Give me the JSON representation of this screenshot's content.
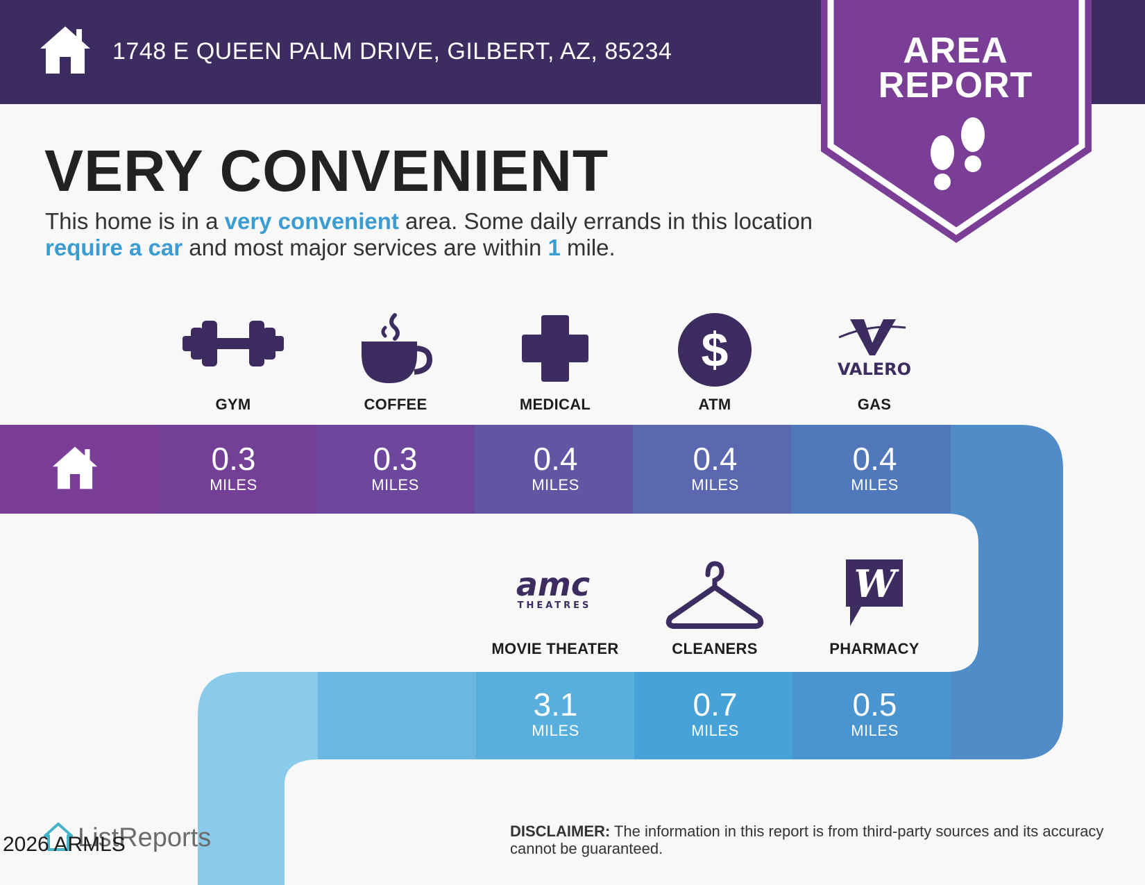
{
  "header": {
    "address": "1748 E QUEEN PALM DRIVE, GILBERT, AZ, 85234",
    "badge_line1": "AREA",
    "badge_line2": "REPORT",
    "color": "#3d2c5f",
    "badge_color": "#7a3e97",
    "icon": "house-icon"
  },
  "headline": "VERY CONVENIENT",
  "intro": {
    "p1": "This home is in a ",
    "h1": "very convenient",
    "p2": " area. Some daily errands in this location ",
    "h2": "require a car",
    "p3": " and most major services are within ",
    "h3": "1",
    "p4": " mile."
  },
  "amenities_row1": [
    {
      "label": "GYM",
      "value": "0.3",
      "unit": "MILES",
      "icon": "dumbbell-icon"
    },
    {
      "label": "COFFEE",
      "value": "0.3",
      "unit": "MILES",
      "icon": "coffee-cup-icon"
    },
    {
      "label": "MEDICAL",
      "value": "0.4",
      "unit": "MILES",
      "icon": "medical-cross-icon"
    },
    {
      "label": "ATM",
      "value": "0.4",
      "unit": "MILES",
      "icon": "dollar-icon"
    },
    {
      "label": "GAS",
      "value": "0.4",
      "unit": "MILES",
      "icon": "valero-logo",
      "logo_text": "VALERO"
    }
  ],
  "amenities_row2": [
    {
      "label": "MOVIE THEATER",
      "value": "3.1",
      "unit": "MILES",
      "icon": "amc-logo",
      "logo_text": "amc",
      "logo_sub": "THEATRES"
    },
    {
      "label": "CLEANERS",
      "value": "0.7",
      "unit": "MILES",
      "icon": "hanger-icon"
    },
    {
      "label": "PHARMACY",
      "value": "0.5",
      "unit": "MILES",
      "icon": "walgreens-logo",
      "logo_text": "W"
    }
  ],
  "disclaimer": {
    "bold": "DISCLAIMER:",
    "text": " The information in this report is from third-party sources and its accuracy cannot be guaranteed."
  },
  "footer": {
    "brand": "ListReports",
    "copyright": "2026 ARMLS"
  },
  "colors": {
    "purple": "#7a3e97",
    "dark_purple": "#3d2c5f",
    "blue": "#4a8fcc",
    "light_blue": "#85c8ea",
    "highlight": "#3a9cd0"
  }
}
